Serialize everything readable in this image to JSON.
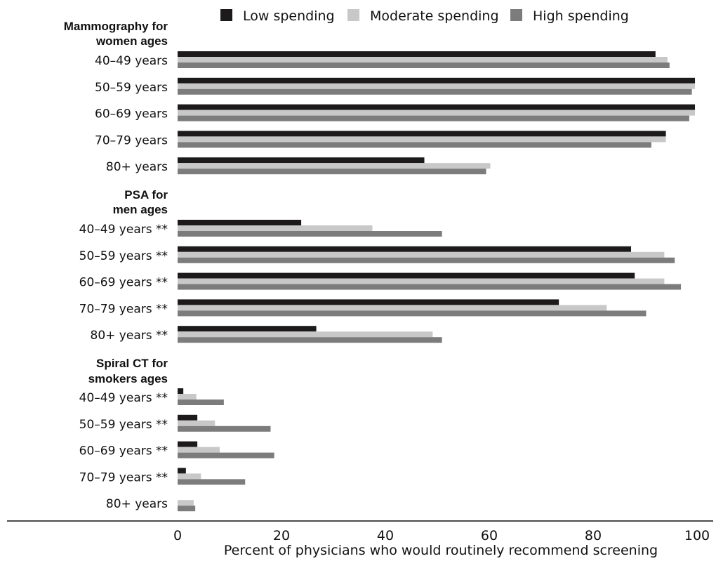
{
  "chart_data": {
    "type": "bar",
    "orientation": "horizontal",
    "xlabel": "Percent of physicians who would routinely recommend screening",
    "xlim": [
      0,
      100
    ],
    "xticks": [
      0,
      20,
      40,
      60,
      80,
      100
    ],
    "grid": false,
    "legend_position": "top",
    "series": [
      {
        "name": "Low spending",
        "color": "#1c1a1b"
      },
      {
        "name": "Moderate spending",
        "color": "#c8c8c8"
      },
      {
        "name": "High spending",
        "color": "#7c7c7c"
      }
    ],
    "groups": [
      {
        "title_lines": [
          "Mammography for",
          "women ages"
        ],
        "categories": [
          {
            "label": "40–49 years",
            "values": [
              92,
              94.3,
              94.7
            ]
          },
          {
            "label": "50–59 years",
            "values": [
              99.6,
              99.6,
              99
            ]
          },
          {
            "label": "60–69 years",
            "values": [
              99.6,
              99.6,
              98.5
            ]
          },
          {
            "label": "70–79 years",
            "values": [
              94,
              94,
              91.2
            ]
          },
          {
            "label": "80+ years",
            "values": [
              47.5,
              60.2,
              59.4
            ]
          }
        ]
      },
      {
        "title_lines": [
          "PSA for",
          "men ages"
        ],
        "categories": [
          {
            "label": "40–49 years **",
            "values": [
              23.8,
              37.5,
              50.9
            ]
          },
          {
            "label": "50–59 years **",
            "values": [
              87.3,
              93.7,
              95.7
            ]
          },
          {
            "label": "60–69 years **",
            "values": [
              88,
              93.7,
              96.9
            ]
          },
          {
            "label": "70–79 years **",
            "values": [
              73.4,
              82.6,
              90.2
            ]
          },
          {
            "label": "80+ years **",
            "values": [
              26.7,
              49.1,
              50.9
            ]
          }
        ]
      },
      {
        "title_lines": [
          "Spiral CT for",
          "smokers ages"
        ],
        "categories": [
          {
            "label": "40–49 years **",
            "values": [
              1.1,
              3.6,
              8.9
            ]
          },
          {
            "label": "50–59 years **",
            "values": [
              3.8,
              7.2,
              17.9
            ]
          },
          {
            "label": "60–69 years **",
            "values": [
              3.8,
              8.1,
              18.6
            ]
          },
          {
            "label": "70–79 years **",
            "values": [
              1.6,
              4.5,
              13
            ]
          },
          {
            "label": "80+ years",
            "values": [
              0,
              3.1,
              3.4
            ]
          }
        ]
      }
    ]
  }
}
